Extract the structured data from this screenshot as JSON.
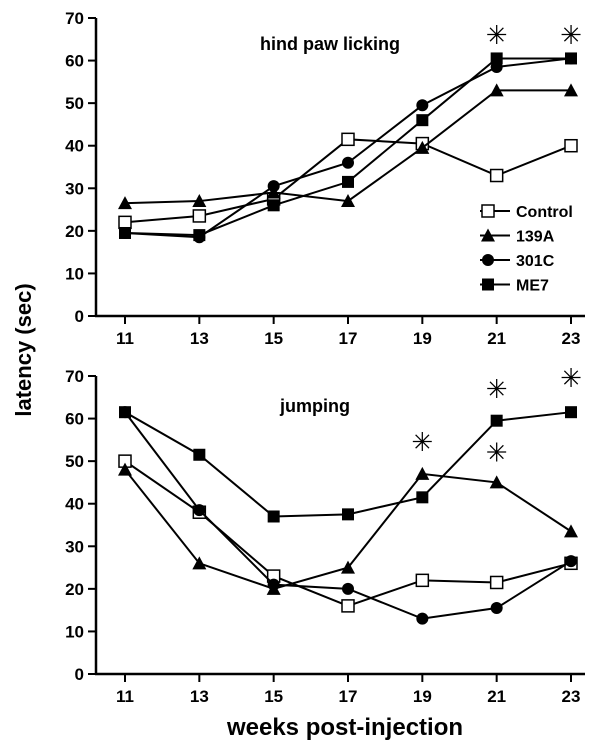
{
  "figure": {
    "ylabel": "latency (sec)",
    "xlabel": "weeks post-injection"
  },
  "legend": {
    "items": [
      {
        "label": "Control",
        "marker": "open-square"
      },
      {
        "label": "139A",
        "marker": "triangle"
      },
      {
        "label": "301C",
        "marker": "circle"
      },
      {
        "label": "ME7",
        "marker": "square"
      }
    ]
  },
  "chart_data": [
    {
      "type": "line",
      "title": "hind paw licking",
      "x": [
        11,
        13,
        15,
        17,
        19,
        21,
        23
      ],
      "ylim": [
        0,
        70
      ],
      "yticks": [
        0,
        10,
        20,
        30,
        40,
        50,
        60,
        70
      ],
      "xticks": [
        11,
        13,
        15,
        17,
        19,
        21,
        23
      ],
      "series": [
        {
          "name": "Control",
          "marker": "open-square",
          "values": [
            22,
            23.5,
            27.5,
            41.5,
            40.5,
            33,
            40
          ]
        },
        {
          "name": "139A",
          "marker": "triangle",
          "values": [
            26.5,
            27,
            29,
            27,
            39.5,
            53,
            53
          ]
        },
        {
          "name": "301C",
          "marker": "circle",
          "values": [
            19.5,
            18.5,
            30.5,
            36,
            49.5,
            58.5,
            60.5
          ]
        },
        {
          "name": "ME7",
          "marker": "square",
          "values": [
            19.5,
            19,
            26,
            31.5,
            46,
            60.5,
            60.5
          ]
        }
      ],
      "annotations": [
        {
          "x": 21,
          "y": 66,
          "text": "✳"
        },
        {
          "x": 23,
          "y": 66,
          "text": "✳"
        }
      ],
      "grid": false,
      "legend": "right"
    },
    {
      "type": "line",
      "title": "jumping",
      "x": [
        11,
        13,
        15,
        17,
        19,
        21,
        23
      ],
      "ylim": [
        0,
        70
      ],
      "yticks": [
        0,
        10,
        20,
        30,
        40,
        50,
        60,
        70
      ],
      "xticks": [
        11,
        13,
        15,
        17,
        19,
        21,
        23
      ],
      "series": [
        {
          "name": "Control",
          "marker": "open-square",
          "values": [
            50,
            38,
            23,
            16,
            22,
            21.5,
            26
          ]
        },
        {
          "name": "139A",
          "marker": "triangle",
          "values": [
            48,
            26,
            20,
            25,
            47,
            45,
            33.5
          ]
        },
        {
          "name": "301C",
          "marker": "circle",
          "values": [
            61.5,
            38.5,
            21,
            20,
            13,
            15.5,
            26.5
          ]
        },
        {
          "name": "ME7",
          "marker": "square",
          "values": [
            61.5,
            51.5,
            37,
            37.5,
            41.5,
            59.5,
            61.5
          ]
        }
      ],
      "annotations": [
        {
          "x": 19,
          "y": 54.5,
          "text": "✳"
        },
        {
          "x": 21,
          "y": 52,
          "text": "✳"
        },
        {
          "x": 21,
          "y": 67,
          "text": "✳"
        },
        {
          "x": 23,
          "y": 69.5,
          "text": "✳"
        }
      ],
      "grid": false,
      "legend": "none"
    }
  ]
}
